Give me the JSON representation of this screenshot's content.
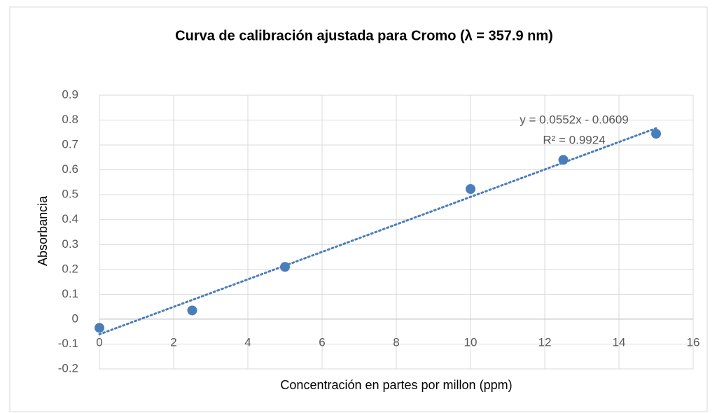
{
  "chart_data": {
    "type": "scatter",
    "title": "Curva de calibración ajustada para Cromo (λ = 357.9 nm)",
    "x_label": "Concentración en partes por millon (ppm)",
    "y_label": "Absorbancia",
    "series": [
      {
        "name": "Absorbancia",
        "color": "#4a7ebb",
        "x": [
          0,
          2.5,
          5,
          10,
          12.5,
          15
        ],
        "values": [
          -0.035,
          0.035,
          0.21,
          0.523,
          0.64,
          0.745
        ]
      }
    ],
    "trendline": {
      "equation": "y = 0.0552x - 0.0609",
      "r_squared": "R² = 0.9924",
      "slope": 0.0552,
      "intercept": -0.0609,
      "color": "#4a7ebb"
    },
    "xlim": [
      0,
      16
    ],
    "xticks": [
      0,
      2,
      4,
      6,
      8,
      10,
      12,
      14,
      16
    ],
    "ylim": [
      -0.2,
      0.9
    ],
    "yticks": [
      -0.2,
      -0.1,
      0,
      0.1,
      0.2,
      0.3,
      0.4,
      0.5,
      0.6,
      0.7,
      0.8,
      0.9
    ],
    "grid": true
  }
}
